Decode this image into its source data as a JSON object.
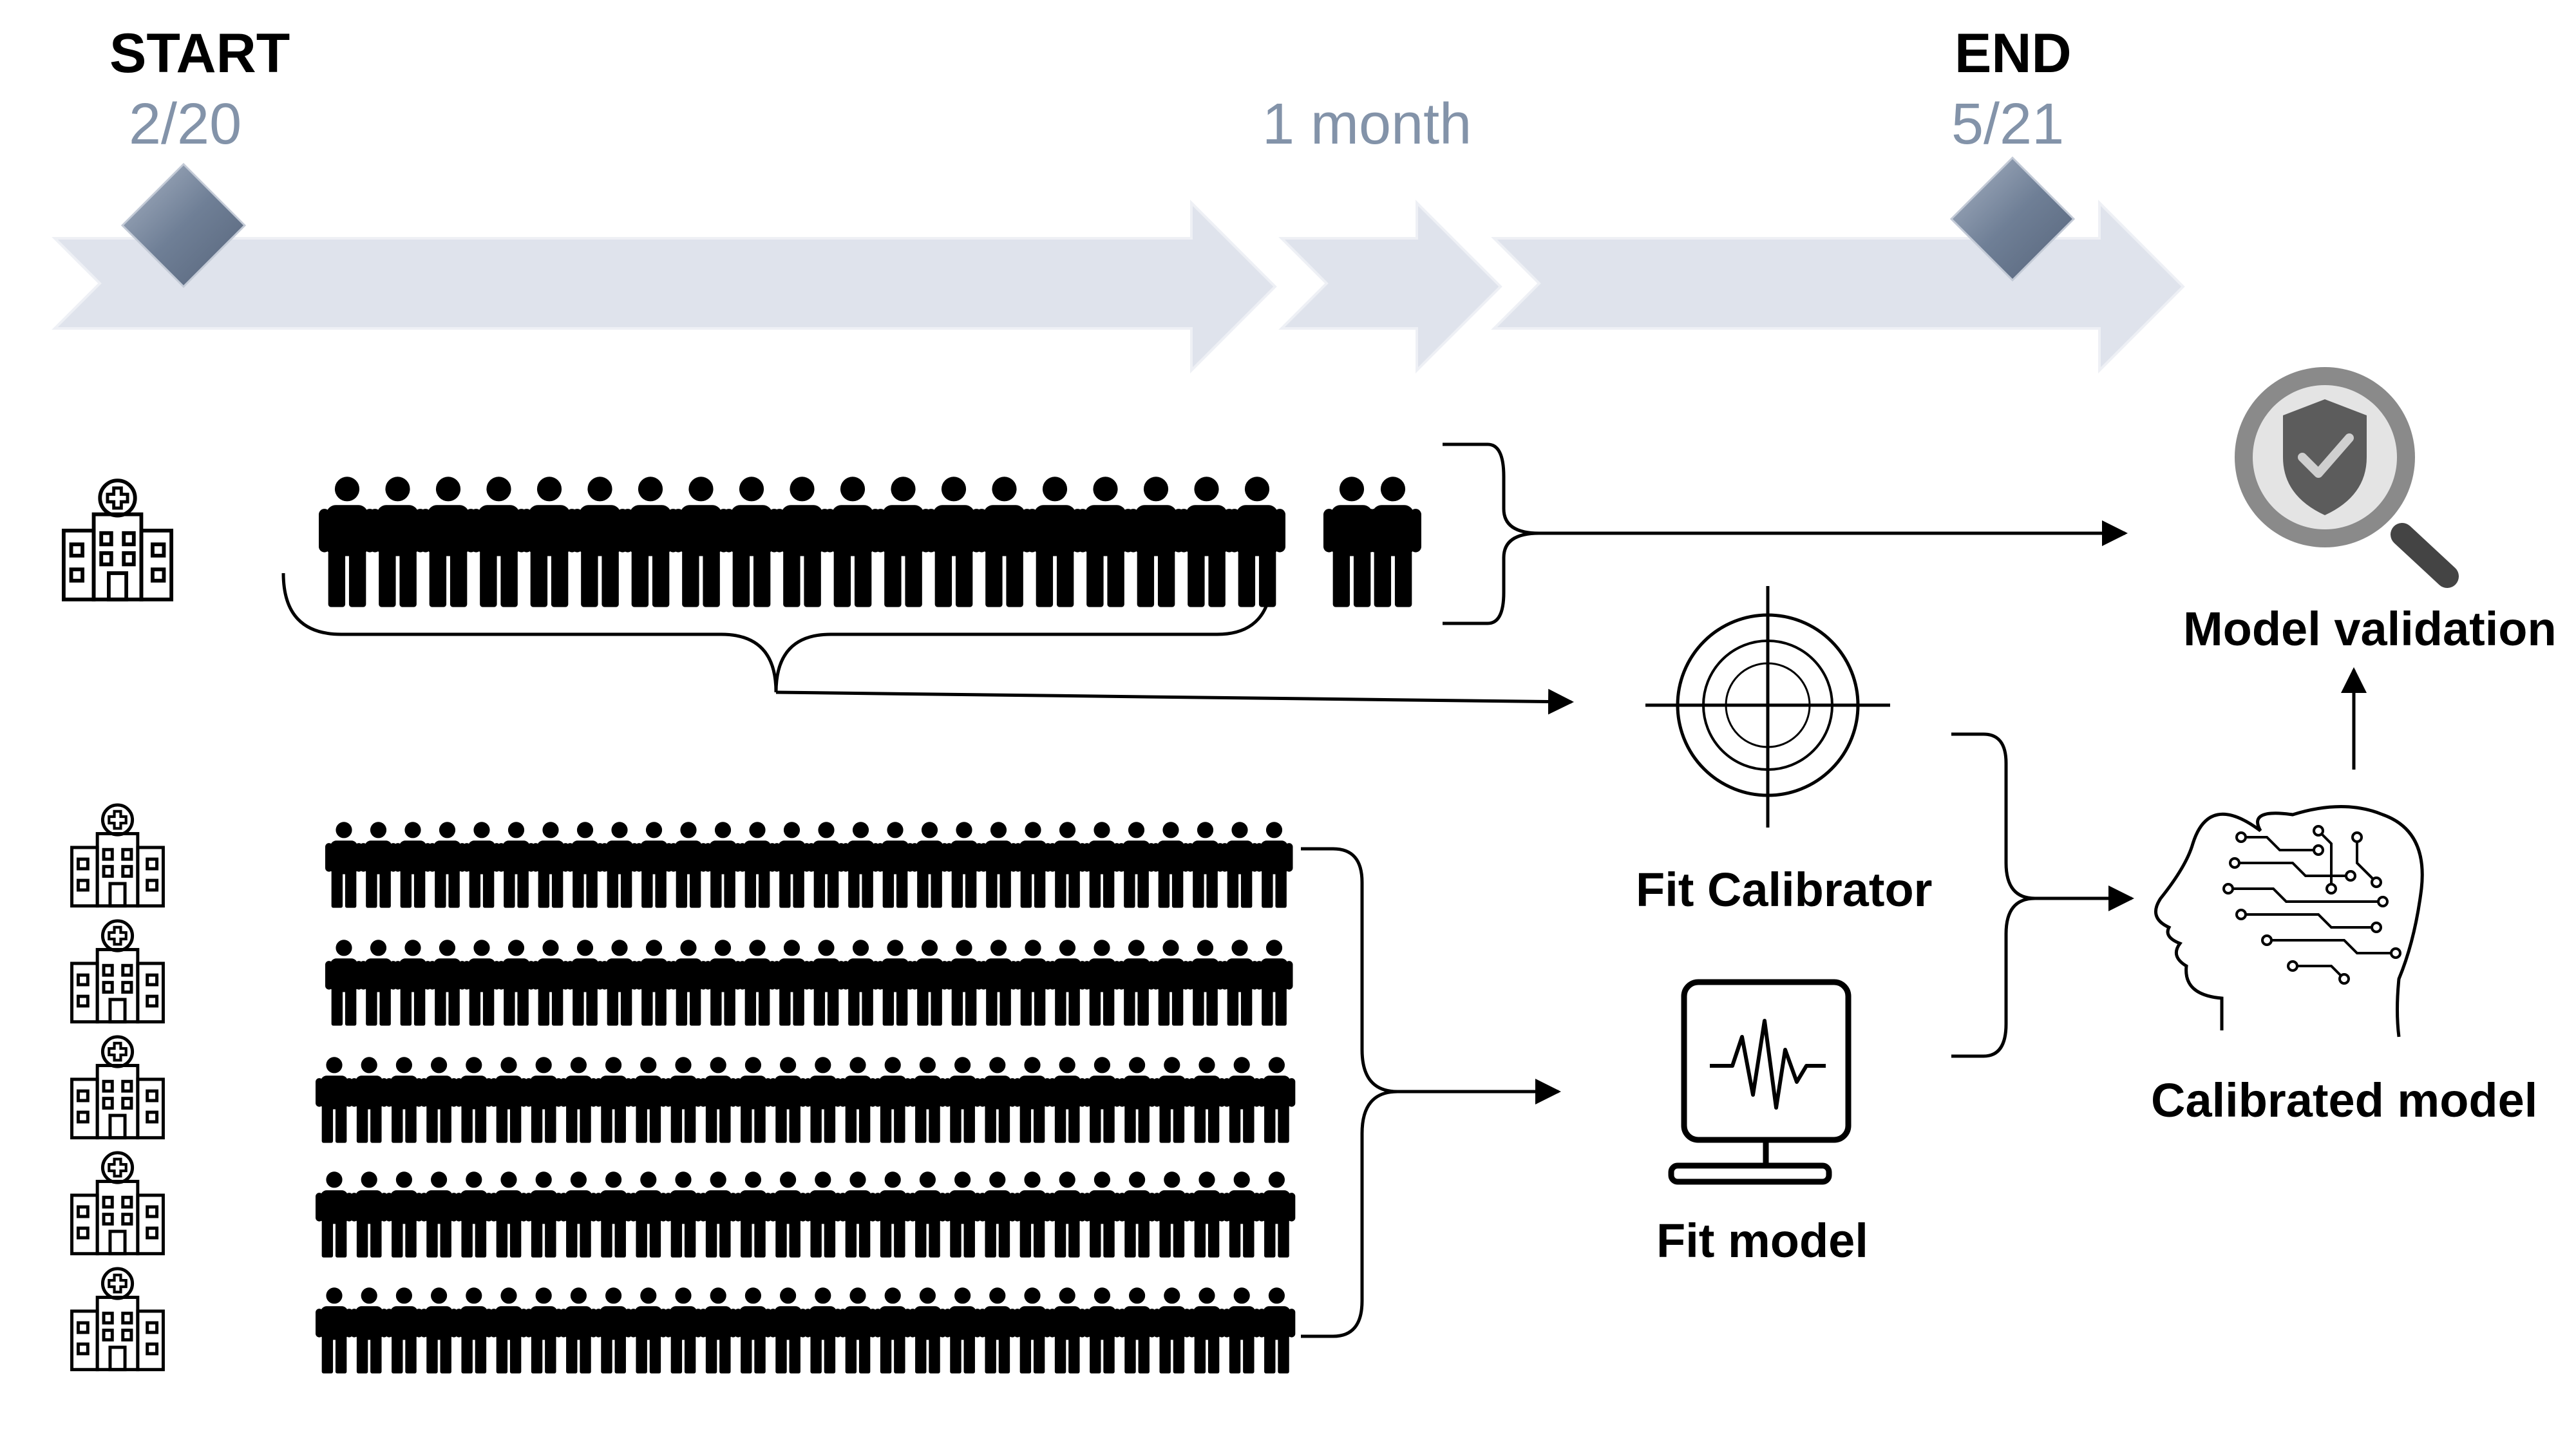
{
  "timeline": {
    "start_label": "START",
    "start_date": "2/20",
    "middle_label": "1 month",
    "end_label": "END",
    "end_date": "5/21"
  },
  "steps": {
    "fit_calibrator": "Fit Calibrator",
    "fit_model": "Fit model",
    "calibrated_model": "Calibrated model",
    "model_validation": "Model validation"
  },
  "icons": {
    "hospital": "hospital-icon",
    "person": "person-icon",
    "target": "target-icon",
    "monitor": "monitor-icon",
    "brain": "brain-circuit-icon",
    "validation": "shield-check-magnifier-icon"
  },
  "colors": {
    "timeline_arrow": "#dfe3ec",
    "milestone": "#6f7f96",
    "date_text": "#8393a9",
    "ink": "#000000"
  }
}
